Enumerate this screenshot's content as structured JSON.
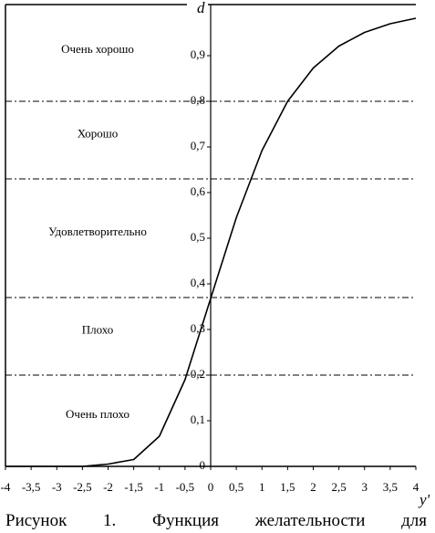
{
  "chart_data": {
    "type": "line",
    "y_label": "d",
    "x_label": "y'",
    "x": [
      -4,
      -3.5,
      -3,
      -2.5,
      -2,
      -1.5,
      -1,
      -0.5,
      0,
      0.5,
      1,
      1.5,
      2,
      2.5,
      3,
      3.5,
      4
    ],
    "series": [
      {
        "color": "#000000",
        "values": [
          0,
          0,
          0,
          0,
          0.005,
          0.015,
          0.066,
          0.19,
          0.368,
          0.545,
          0.692,
          0.8,
          0.873,
          0.921,
          0.951,
          0.97,
          0.982
        ]
      }
    ],
    "xlim": [
      -4,
      4
    ],
    "ylim": [
      0,
      1
    ],
    "xticks": [
      -4,
      {
        "value": -3.5,
        "label": "-3,5"
      },
      -3,
      {
        "value": -2.5,
        "label": "-2,5"
      },
      -2,
      {
        "value": -1.5,
        "label": "-1,5"
      },
      -1,
      {
        "value": -0.5,
        "label": "-0,5"
      },
      0,
      {
        "value": 0.5,
        "label": "0,5"
      },
      1,
      {
        "value": 1.5,
        "label": "1,5"
      },
      2,
      {
        "value": 2.5,
        "label": "2,5"
      },
      3,
      {
        "value": 3.5,
        "label": "3,5"
      },
      4
    ],
    "yticks": [
      0,
      {
        "value": 0.1,
        "label": "0,1"
      },
      {
        "value": 0.2,
        "label": "0,2"
      },
      {
        "value": 0.3,
        "label": "0,3"
      },
      {
        "value": 0.4,
        "label": "0,4"
      },
      {
        "value": 0.5,
        "label": "0,5"
      },
      {
        "value": 0.6,
        "label": "0,6"
      },
      {
        "value": 0.7,
        "label": "0,7"
      },
      {
        "value": 0.8,
        "label": "0,8"
      },
      {
        "value": 0.9,
        "label": "0,9"
      }
    ],
    "ref_lines": [
      0.8,
      0.63,
      0.37,
      0.2
    ],
    "zones": [
      "Очень хорошо",
      "Хорошо",
      "Удовлетворительно",
      "Плохо",
      "Очень плохо"
    ],
    "caption": "Рисунок 1. Функция желательности для"
  }
}
